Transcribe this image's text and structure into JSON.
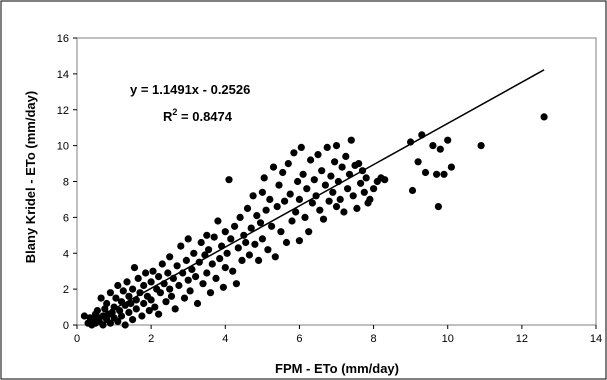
{
  "chart_data": {
    "type": "scatter",
    "title": "",
    "xlabel": "FPM - ETo (mm/day)",
    "ylabel": "Blany Kridel - ETo (mm/day)",
    "xlim": [
      0,
      14
    ],
    "ylim": [
      0,
      16
    ],
    "xticks": [
      "0",
      "2",
      "4",
      "6",
      "8",
      "10",
      "12",
      "14"
    ],
    "yticks": [
      "0",
      "2",
      "4",
      "6",
      "8",
      "10",
      "12",
      "14",
      "16"
    ],
    "grid": false,
    "legend": "none",
    "colors": {
      "marker": "#000000",
      "trendline": "#000000"
    },
    "trendline": {
      "slope": 1.1491,
      "intercept": -0.2526,
      "equation": "y = 1.1491x - 0.2526",
      "r2_prefix": "R",
      "r2_exp": "2",
      "r2_suffix": " = 0.8474"
    },
    "series": [
      {
        "points": [
          [
            0.2,
            0.5
          ],
          [
            0.3,
            0.1
          ],
          [
            0.35,
            0.4
          ],
          [
            0.4,
            0.0
          ],
          [
            0.45,
            0.3
          ],
          [
            0.5,
            0.6
          ],
          [
            0.5,
            0.1
          ],
          [
            0.55,
            0.8
          ],
          [
            0.6,
            0.2
          ],
          [
            0.6,
            0.4
          ],
          [
            0.65,
            1.5
          ],
          [
            0.7,
            0.0
          ],
          [
            0.7,
            0.5
          ],
          [
            0.75,
            0.9
          ],
          [
            0.8,
            0.3
          ],
          [
            0.8,
            1.2
          ],
          [
            0.85,
            0.6
          ],
          [
            0.9,
            0.1
          ],
          [
            0.9,
            1.8
          ],
          [
            0.95,
            0.7
          ],
          [
            1.0,
            0.4
          ],
          [
            1.0,
            1.0
          ],
          [
            1.05,
            1.5
          ],
          [
            1.1,
            0.2
          ],
          [
            1.1,
            2.2
          ],
          [
            1.15,
            0.8
          ],
          [
            1.2,
            1.3
          ],
          [
            1.2,
            0.5
          ],
          [
            1.25,
            1.9
          ],
          [
            1.3,
            1.1
          ],
          [
            1.3,
            0.0
          ],
          [
            1.35,
            2.4
          ],
          [
            1.4,
            1.6
          ],
          [
            1.4,
            0.7
          ],
          [
            1.45,
            1.2
          ],
          [
            1.5,
            2.0
          ],
          [
            1.5,
            0.3
          ],
          [
            1.55,
            3.2
          ],
          [
            1.6,
            1.4
          ],
          [
            1.6,
            0.9
          ],
          [
            1.65,
            2.6
          ],
          [
            1.7,
            1.8
          ],
          [
            1.75,
            0.5
          ],
          [
            1.8,
            2.2
          ],
          [
            1.8,
            1.2
          ],
          [
            1.85,
            2.9
          ],
          [
            1.9,
            1.6
          ],
          [
            1.95,
            0.8
          ],
          [
            2.0,
            2.4
          ],
          [
            2.0,
            1.4
          ],
          [
            2.05,
            3.0
          ],
          [
            2.1,
            1.0
          ],
          [
            2.15,
            2.0
          ],
          [
            2.2,
            2.7
          ],
          [
            2.2,
            0.6
          ],
          [
            2.25,
            1.8
          ],
          [
            2.3,
            3.4
          ],
          [
            2.35,
            2.3
          ],
          [
            2.4,
            1.3
          ],
          [
            2.45,
            2.9
          ],
          [
            2.5,
            2.0
          ],
          [
            2.5,
            3.8
          ],
          [
            2.55,
            1.6
          ],
          [
            2.6,
            2.6
          ],
          [
            2.65,
            0.9
          ],
          [
            2.7,
            3.3
          ],
          [
            2.75,
            2.2
          ],
          [
            2.8,
            4.4
          ],
          [
            2.85,
            2.9
          ],
          [
            2.9,
            1.5
          ],
          [
            2.95,
            3.6
          ],
          [
            3.0,
            2.5
          ],
          [
            3.0,
            4.8
          ],
          [
            3.05,
            1.9
          ],
          [
            3.1,
            3.1
          ],
          [
            3.15,
            4.0
          ],
          [
            3.2,
            2.7
          ],
          [
            3.25,
            1.2
          ],
          [
            3.3,
            3.5
          ],
          [
            3.35,
            4.6
          ],
          [
            3.4,
            2.3
          ],
          [
            3.45,
            3.9
          ],
          [
            3.5,
            5.0
          ],
          [
            3.5,
            2.9
          ],
          [
            3.55,
            4.2
          ],
          [
            3.6,
            1.8
          ],
          [
            3.65,
            3.4
          ],
          [
            3.7,
            4.9
          ],
          [
            3.75,
            2.6
          ],
          [
            3.8,
            5.8
          ],
          [
            3.85,
            3.7
          ],
          [
            3.9,
            4.4
          ],
          [
            3.95,
            2.1
          ],
          [
            4.0,
            5.2
          ],
          [
            4.0,
            3.2
          ],
          [
            4.05,
            4.0
          ],
          [
            4.1,
            8.1
          ],
          [
            4.15,
            4.8
          ],
          [
            4.2,
            3.0
          ],
          [
            4.25,
            5.5
          ],
          [
            4.3,
            2.3
          ],
          [
            4.35,
            4.3
          ],
          [
            4.4,
            6.0
          ],
          [
            4.45,
            3.6
          ],
          [
            4.5,
            5.0
          ],
          [
            4.55,
            4.6
          ],
          [
            4.6,
            6.5
          ],
          [
            4.65,
            3.9
          ],
          [
            4.7,
            5.4
          ],
          [
            4.75,
            7.2
          ],
          [
            4.8,
            4.5
          ],
          [
            4.85,
            6.1
          ],
          [
            4.9,
            3.6
          ],
          [
            4.95,
            5.7
          ],
          [
            5.0,
            7.4
          ],
          [
            5.0,
            4.8
          ],
          [
            5.05,
            8.2
          ],
          [
            5.1,
            6.4
          ],
          [
            5.15,
            4.2
          ],
          [
            5.2,
            7.0
          ],
          [
            5.25,
            5.5
          ],
          [
            5.3,
            8.8
          ],
          [
            5.35,
            3.8
          ],
          [
            5.4,
            6.6
          ],
          [
            5.45,
            7.8
          ],
          [
            5.5,
            5.2
          ],
          [
            5.55,
            8.5
          ],
          [
            5.6,
            6.9
          ],
          [
            5.65,
            4.6
          ],
          [
            5.7,
            9.0
          ],
          [
            5.75,
            7.3
          ],
          [
            5.8,
            5.8
          ],
          [
            5.85,
            9.6
          ],
          [
            5.9,
            6.3
          ],
          [
            5.95,
            8.0
          ],
          [
            6.0,
            4.7
          ],
          [
            6.0,
            7.0
          ],
          [
            6.05,
            9.9
          ],
          [
            6.1,
            8.4
          ],
          [
            6.15,
            6.0
          ],
          [
            6.2,
            7.6
          ],
          [
            6.25,
            5.2
          ],
          [
            6.3,
            9.2
          ],
          [
            6.35,
            6.8
          ],
          [
            6.4,
            8.1
          ],
          [
            6.45,
            7.2
          ],
          [
            6.5,
            9.5
          ],
          [
            6.55,
            6.4
          ],
          [
            6.6,
            8.6
          ],
          [
            6.65,
            5.9
          ],
          [
            6.7,
            7.8
          ],
          [
            6.75,
            9.9
          ],
          [
            6.8,
            6.9
          ],
          [
            6.85,
            8.3
          ],
          [
            6.9,
            7.4
          ],
          [
            6.95,
            9.1
          ],
          [
            7.0,
            6.6
          ],
          [
            7.0,
            10.0
          ],
          [
            7.05,
            8.0
          ],
          [
            7.1,
            7.0
          ],
          [
            7.15,
            8.8
          ],
          [
            7.2,
            6.3
          ],
          [
            7.25,
            9.4
          ],
          [
            7.3,
            7.6
          ],
          [
            7.35,
            8.4
          ],
          [
            7.4,
            10.3
          ],
          [
            7.45,
            7.2
          ],
          [
            7.5,
            8.9
          ],
          [
            7.55,
            6.5
          ],
          [
            7.6,
            9.0
          ],
          [
            7.65,
            7.9
          ],
          [
            7.7,
            8.6
          ],
          [
            7.75,
            7.4
          ],
          [
            7.8,
            8.2
          ],
          [
            7.85,
            6.8
          ],
          [
            7.9,
            7.0
          ],
          [
            8.0,
            7.6
          ],
          [
            8.1,
            8.0
          ],
          [
            8.2,
            8.2
          ],
          [
            8.3,
            8.1
          ],
          [
            9.0,
            10.2
          ],
          [
            9.05,
            7.5
          ],
          [
            9.2,
            9.1
          ],
          [
            9.3,
            10.6
          ],
          [
            9.4,
            8.5
          ],
          [
            9.6,
            10.0
          ],
          [
            9.7,
            8.4
          ],
          [
            9.75,
            6.6
          ],
          [
            9.8,
            9.8
          ],
          [
            9.9,
            8.4
          ],
          [
            10.0,
            10.3
          ],
          [
            10.1,
            8.8
          ],
          [
            10.9,
            10.0
          ],
          [
            12.6,
            11.6
          ]
        ]
      }
    ]
  }
}
